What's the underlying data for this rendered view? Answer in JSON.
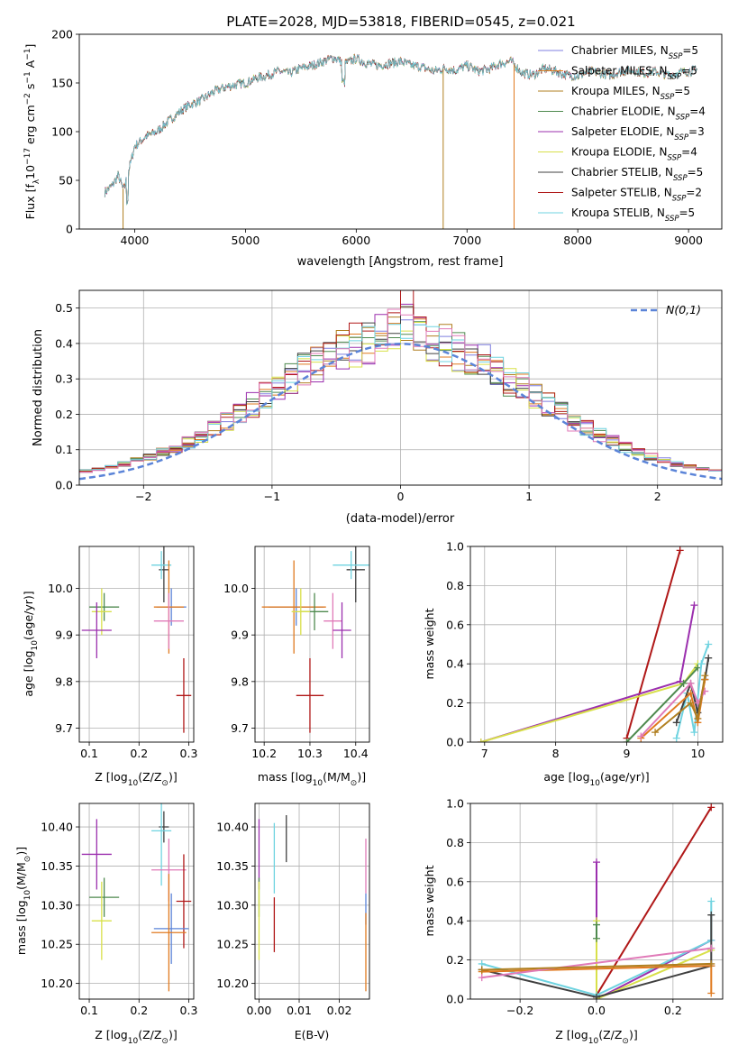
{
  "title": "PLATE=2028, MJD=53818, FIBERID=0545, z=0.021",
  "colors": {
    "chabrier_miles": "#7f7fe0",
    "salpeter_miles": "#e07a1f",
    "kroupa_miles": "#b07f20",
    "chabrier_elodie": "#4f8a4f",
    "salpeter_elodie": "#9b2fae",
    "kroupa_elodie": "#d8e04a",
    "chabrier_stelib": "#404040",
    "salpeter_stelib": "#b01818",
    "kroupa_stelib": "#6fd3e0",
    "pink": "#e07ab8",
    "blue": "#5b84d8",
    "normal": "#5b84d8",
    "grid": "#b0b0b0"
  },
  "chart_data": [
    {
      "id": "spectrum",
      "type": "line",
      "title": "PLATE=2028, MJD=53818, FIBERID=0545, z=0.021",
      "xlabel": "wavelength [Angstrom, rest frame]",
      "ylabel": "Flux [f",
      "ylabel_sub": "λ",
      "ylabel_mid": "10",
      "ylabel_sup": "−17",
      "ylabel_rest": " erg cm",
      "ylabel_sup2": "−2",
      "ylabel_rest2": " s",
      "ylabel_sup3": "−1",
      "ylabel_rest3": " A",
      "ylabel_sup4": "−1",
      "ylabel_end": "]",
      "xlim": [
        3500,
        9300
      ],
      "ylim": [
        0,
        200
      ],
      "xticks": [
        4000,
        5000,
        6000,
        7000,
        8000,
        9000
      ],
      "yticks": [
        0,
        50,
        100,
        150,
        200
      ],
      "grid": false,
      "legend_position": "top-right",
      "continuum": {
        "x": [
          3730,
          3800,
          3850,
          3900,
          3950,
          4000,
          4100,
          4200,
          4300,
          4400,
          4500,
          4600,
          4700,
          4800,
          4900,
          5000,
          5100,
          5200,
          5300,
          5400,
          5500,
          5600,
          5700,
          5800,
          5900,
          6000,
          6100,
          6200,
          6300,
          6400,
          6500,
          6600,
          6700,
          6800,
          6900,
          7000,
          7100,
          7200,
          7300,
          7400,
          7500,
          7600,
          7700,
          7800,
          7900,
          8000,
          8100,
          8200,
          8300,
          8400,
          8500,
          8600,
          8700,
          8800,
          8900,
          9000,
          9080
        ],
        "y": [
          38,
          45,
          55,
          40,
          62,
          85,
          95,
          100,
          110,
          120,
          128,
          132,
          140,
          145,
          148,
          150,
          155,
          158,
          162,
          160,
          165,
          168,
          172,
          176,
          170,
          175,
          170,
          168,
          170,
          172,
          168,
          166,
          162,
          165,
          163,
          168,
          162,
          164,
          170,
          172,
          160,
          158,
          165,
          162,
          158,
          157,
          162,
          160,
          158,
          162,
          163,
          160,
          162,
          158,
          160,
          162,
          163
        ]
      },
      "series": [
        {
          "name": "Chabrier MILES",
          "nssp": "5"
        },
        {
          "name": "Salpeter MILES",
          "nssp": "5"
        },
        {
          "name": "Kroupa MILES",
          "nssp": "5"
        },
        {
          "name": "Chabrier ELODIE",
          "nssp": "4"
        },
        {
          "name": "Salpeter ELODIE",
          "nssp": "3"
        },
        {
          "name": "Kroupa ELODIE",
          "nssp": "4"
        },
        {
          "name": "Chabrier STELIB",
          "nssp": "5"
        },
        {
          "name": "Salpeter STELIB",
          "nssp": "2"
        },
        {
          "name": "Kroupa STELIB",
          "nssp": "5"
        }
      ]
    },
    {
      "id": "residuals",
      "type": "line",
      "xlabel": "(data-model)/error",
      "ylabel": "Normed distribution",
      "xlim": [
        -2.5,
        2.5
      ],
      "ylim": [
        0,
        0.55
      ],
      "xticks": [
        -2,
        -1,
        0,
        1,
        2
      ],
      "yticks": [
        0.0,
        0.1,
        0.2,
        0.3,
        0.4,
        0.5
      ],
      "grid": true,
      "legend_position": "top-right",
      "legend_label": "N(0,1)",
      "normal_curve": {
        "mean": 0,
        "sigma": 1
      }
    },
    {
      "id": "age_vs_Z",
      "type": "scatter",
      "xlabel": "Z [log",
      "xlabel_sub": "10",
      "xlabel_rest": "(Z/Z",
      "xlabel_sun": "⊙",
      "xlabel_end": ")]",
      "ylabel": "age  [log",
      "ylabel_sub": "10",
      "ylabel_rest": "(age/yr)]",
      "xlim": [
        0.08,
        0.31
      ],
      "ylim": [
        9.67,
        10.09
      ],
      "xticks": [
        0.1,
        0.2,
        0.3
      ],
      "yticks": [
        9.7,
        9.8,
        9.9,
        10.0
      ],
      "grid": true,
      "points": [
        {
          "color": "chabrier_stelib",
          "x": 0.25,
          "y": 10.04,
          "xerr": 0.01,
          "yerr": 0.07
        },
        {
          "color": "kroupa_stelib",
          "x": 0.245,
          "y": 10.05,
          "xerr": 0.02,
          "yerr": 0.03
        },
        {
          "color": "blue",
          "x": 0.265,
          "y": 9.96,
          "xerr": 0.03,
          "yerr": 0.04
        },
        {
          "color": "salpeter_miles",
          "x": 0.26,
          "y": 9.96,
          "xerr": 0.03,
          "yerr": 0.1
        },
        {
          "color": "pink",
          "x": 0.26,
          "y": 9.93,
          "xerr": 0.03,
          "yerr": 0.06
        },
        {
          "color": "chabrier_elodie",
          "x": 0.13,
          "y": 9.96,
          "xerr": 0.03,
          "yerr": 0.03
        },
        {
          "color": "kroupa_elodie",
          "x": 0.125,
          "y": 9.95,
          "xerr": 0.02,
          "yerr": 0.05
        },
        {
          "color": "salpeter_elodie",
          "x": 0.115,
          "y": 9.91,
          "xerr": 0.03,
          "yerr": 0.06
        },
        {
          "color": "salpeter_stelib",
          "x": 0.29,
          "y": 9.77,
          "xerr": 0.015,
          "yerr": 0.08
        }
      ]
    },
    {
      "id": "age_vs_mass",
      "type": "scatter",
      "xlabel": "mass [log",
      "xlabel_sub": "10",
      "xlabel_rest": "(M/M",
      "xlabel_sun": "⊙",
      "xlabel_end": ")]",
      "xlim": [
        10.18,
        10.43
      ],
      "ylim": [
        9.67,
        10.09
      ],
      "xticks": [
        10.2,
        10.3,
        10.4
      ],
      "yticks": [
        9.7,
        9.8,
        9.9,
        10.0
      ],
      "grid": true,
      "points": [
        {
          "color": "chabrier_stelib",
          "x": 10.4,
          "y": 10.04,
          "xerr": 0.02,
          "yerr": 0.07
        },
        {
          "color": "kroupa_stelib",
          "x": 10.39,
          "y": 10.05,
          "xerr": 0.04,
          "yerr": 0.03
        },
        {
          "color": "blue",
          "x": 10.27,
          "y": 9.96,
          "xerr": 0.06,
          "yerr": 0.04
        },
        {
          "color": "salpeter_miles",
          "x": 10.265,
          "y": 9.96,
          "xerr": 0.07,
          "yerr": 0.1
        },
        {
          "color": "chabrier_elodie",
          "x": 10.31,
          "y": 9.95,
          "xerr": 0.03,
          "yerr": 0.04
        },
        {
          "color": "kroupa_elodie",
          "x": 10.28,
          "y": 9.95,
          "xerr": 0.02,
          "yerr": 0.05
        },
        {
          "color": "pink",
          "x": 10.35,
          "y": 9.93,
          "xerr": 0.02,
          "yerr": 0.06
        },
        {
          "color": "salpeter_elodie",
          "x": 10.37,
          "y": 9.91,
          "xerr": 0.02,
          "yerr": 0.06
        },
        {
          "color": "salpeter_stelib",
          "x": 10.3,
          "y": 9.77,
          "xerr": 0.03,
          "yerr": 0.08
        }
      ]
    },
    {
      "id": "weights_vs_age",
      "type": "line",
      "xlabel": "age  [log",
      "xlabel_sub": "10",
      "xlabel_rest": "(age/yr)]",
      "ylabel": "mass weight",
      "xlim": [
        6.8,
        10.35
      ],
      "ylim": [
        0,
        1.0
      ],
      "xticks": [
        7,
        8,
        9,
        10
      ],
      "yticks": [
        0.0,
        0.2,
        0.4,
        0.6,
        0.8,
        1.0
      ],
      "grid": true,
      "series": [
        {
          "color": "salpeter_stelib",
          "x": [
            9.0,
            9.75
          ],
          "y": [
            0.02,
            0.98
          ]
        },
        {
          "color": "salpeter_elodie",
          "x": [
            6.95,
            9.75,
            9.95
          ],
          "y": [
            0.0,
            0.31,
            0.7
          ]
        },
        {
          "color": "kroupa_elodie",
          "x": [
            6.95,
            9.8,
            10.0
          ],
          "y": [
            0.0,
            0.3,
            0.4
          ]
        },
        {
          "color": "chabrier_elodie",
          "x": [
            9.0,
            9.8,
            10.0
          ],
          "y": [
            0.0,
            0.3,
            0.38
          ]
        },
        {
          "color": "kroupa_stelib",
          "x": [
            9.7,
            9.85,
            9.95,
            10.05,
            10.15
          ],
          "y": [
            0.02,
            0.25,
            0.05,
            0.4,
            0.5
          ]
        },
        {
          "color": "chabrier_stelib",
          "x": [
            9.7,
            9.9,
            10.0,
            10.1,
            10.15
          ],
          "y": [
            0.1,
            0.3,
            0.15,
            0.32,
            0.43
          ]
        },
        {
          "color": "salpeter_miles",
          "x": [
            9.2,
            9.9,
            10.0,
            10.1
          ],
          "y": [
            0.02,
            0.25,
            0.1,
            0.32
          ]
        },
        {
          "color": "pink",
          "x": [
            9.2,
            9.9,
            10.0,
            10.1
          ],
          "y": [
            0.03,
            0.3,
            0.2,
            0.26
          ]
        },
        {
          "color": "kroupa_miles",
          "x": [
            9.4,
            9.9,
            10.0,
            10.1
          ],
          "y": [
            0.05,
            0.2,
            0.12,
            0.34
          ]
        }
      ]
    },
    {
      "id": "mass_vs_Z",
      "type": "scatter",
      "xlabel": "Z [log",
      "xlabel_sub": "10",
      "xlabel_rest": "(Z/Z",
      "xlabel_sun": "⊙",
      "xlabel_end": ")]",
      "ylabel": "mass [log",
      "ylabel_sub": "10",
      "ylabel_rest": "(M/M",
      "ylabel_sun": "⊙",
      "ylabel_end": ")]",
      "xlim": [
        0.08,
        0.31
      ],
      "ylim": [
        10.18,
        10.43
      ],
      "xticks": [
        0.1,
        0.2,
        0.3
      ],
      "yticks": [
        10.2,
        10.25,
        10.3,
        10.35,
        10.4
      ],
      "grid": true,
      "points": [
        {
          "color": "chabrier_stelib",
          "x": 0.25,
          "y": 10.4,
          "xerr": 0.01,
          "yerr": 0.02
        },
        {
          "color": "kroupa_stelib",
          "x": 0.245,
          "y": 10.395,
          "xerr": 0.02,
          "yerr": 0.07
        },
        {
          "color": "salpeter_elodie",
          "x": 0.115,
          "y": 10.365,
          "xerr": 0.03,
          "yerr": 0.045
        },
        {
          "color": "pink",
          "x": 0.26,
          "y": 10.345,
          "xerr": 0.035,
          "yerr": 0.04
        },
        {
          "color": "chabrier_elodie",
          "x": 0.13,
          "y": 10.31,
          "xerr": 0.03,
          "yerr": 0.025
        },
        {
          "color": "salpeter_stelib",
          "x": 0.29,
          "y": 10.305,
          "xerr": 0.015,
          "yerr": 0.06
        },
        {
          "color": "kroupa_elodie",
          "x": 0.125,
          "y": 10.28,
          "xerr": 0.02,
          "yerr": 0.05
        },
        {
          "color": "blue",
          "x": 0.265,
          "y": 10.27,
          "xerr": 0.035,
          "yerr": 0.045
        },
        {
          "color": "salpeter_miles",
          "x": 0.26,
          "y": 10.265,
          "xerr": 0.035,
          "yerr": 0.075
        }
      ]
    },
    {
      "id": "mass_vs_ebv",
      "type": "scatter",
      "xlabel": "E(B-V)",
      "xlim": [
        -0.001,
        0.0275
      ],
      "ylim": [
        10.18,
        10.43
      ],
      "xticks": [
        0.0,
        0.01,
        0.02
      ],
      "xtick_labels": [
        "0.00",
        "0.01",
        "0.02"
      ],
      "yticks": [
        10.2,
        10.25,
        10.3,
        10.35,
        10.4
      ],
      "grid": true,
      "points": [
        {
          "color": "salpeter_elodie",
          "x": 0.0,
          "y": 10.365,
          "yerr": 0.045
        },
        {
          "color": "chabrier_elodie",
          "x": 0.0,
          "y": 10.31,
          "yerr": 0.025
        },
        {
          "color": "kroupa_elodie",
          "x": 0.0,
          "y": 10.28,
          "yerr": 0.05
        },
        {
          "color": "chabrier_stelib",
          "x": 0.0068,
          "y": 10.385,
          "yerr": 0.03
        },
        {
          "color": "kroupa_stelib",
          "x": 0.0038,
          "y": 10.36,
          "yerr": 0.045
        },
        {
          "color": "salpeter_stelib",
          "x": 0.0038,
          "y": 10.275,
          "yerr": 0.035
        },
        {
          "color": "pink",
          "x": 0.0266,
          "y": 10.35,
          "yerr": 0.035
        },
        {
          "color": "blue",
          "x": 0.0266,
          "y": 10.295,
          "yerr": 0.02
        },
        {
          "color": "salpeter_miles",
          "x": 0.0266,
          "y": 10.24,
          "yerr": 0.05
        }
      ]
    },
    {
      "id": "weights_vs_Z",
      "type": "line",
      "xlabel": "Z [log",
      "xlabel_sub": "10",
      "xlabel_rest": "(Z/Z",
      "xlabel_sun": "⊙",
      "xlabel_end": ")]",
      "ylabel": "mass weight",
      "xlim": [
        -0.33,
        0.33
      ],
      "ylim": [
        0,
        1.0
      ],
      "xticks": [
        -0.2,
        0.0,
        0.2
      ],
      "xtick_labels": [
        "−0.2",
        "0.0",
        "0.2"
      ],
      "yticks": [
        0.0,
        0.2,
        0.4,
        0.6,
        0.8,
        1.0
      ],
      "grid": true,
      "series": [
        {
          "color": "salpeter_stelib",
          "x": [
            0.0,
            0.3
          ],
          "y": [
            0.02,
            0.98
          ]
        },
        {
          "color": "salpeter_elodie",
          "x": [
            0.0,
            0.0,
            0.3
          ],
          "y": [
            0.7,
            0.0,
            0.3
          ]
        },
        {
          "color": "kroupa_elodie",
          "x": [
            0.0,
            0.0,
            0.3
          ],
          "y": [
            0.4,
            0.0,
            0.25
          ]
        },
        {
          "color": "chabrier_elodie",
          "x": [
            0.0,
            0.0
          ],
          "y": [
            0.38,
            0.31
          ]
        },
        {
          "color": "kroupa_stelib",
          "x": [
            -0.3,
            0.0,
            0.3,
            0.3
          ],
          "y": [
            0.18,
            0.02,
            0.3,
            0.5
          ]
        },
        {
          "color": "chabrier_stelib",
          "x": [
            -0.3,
            0.0,
            0.3,
            0.3
          ],
          "y": [
            0.15,
            0.01,
            0.17,
            0.43
          ]
        },
        {
          "color": "salpeter_miles",
          "x": [
            -0.3,
            0.3,
            0.3
          ],
          "y": [
            0.14,
            0.17,
            0.03
          ]
        },
        {
          "color": "pink",
          "x": [
            -0.3,
            0.3
          ],
          "y": [
            0.11,
            0.26
          ]
        },
        {
          "color": "kroupa_miles",
          "x": [
            -0.3,
            0.3
          ],
          "y": [
            0.15,
            0.18
          ]
        }
      ]
    }
  ]
}
